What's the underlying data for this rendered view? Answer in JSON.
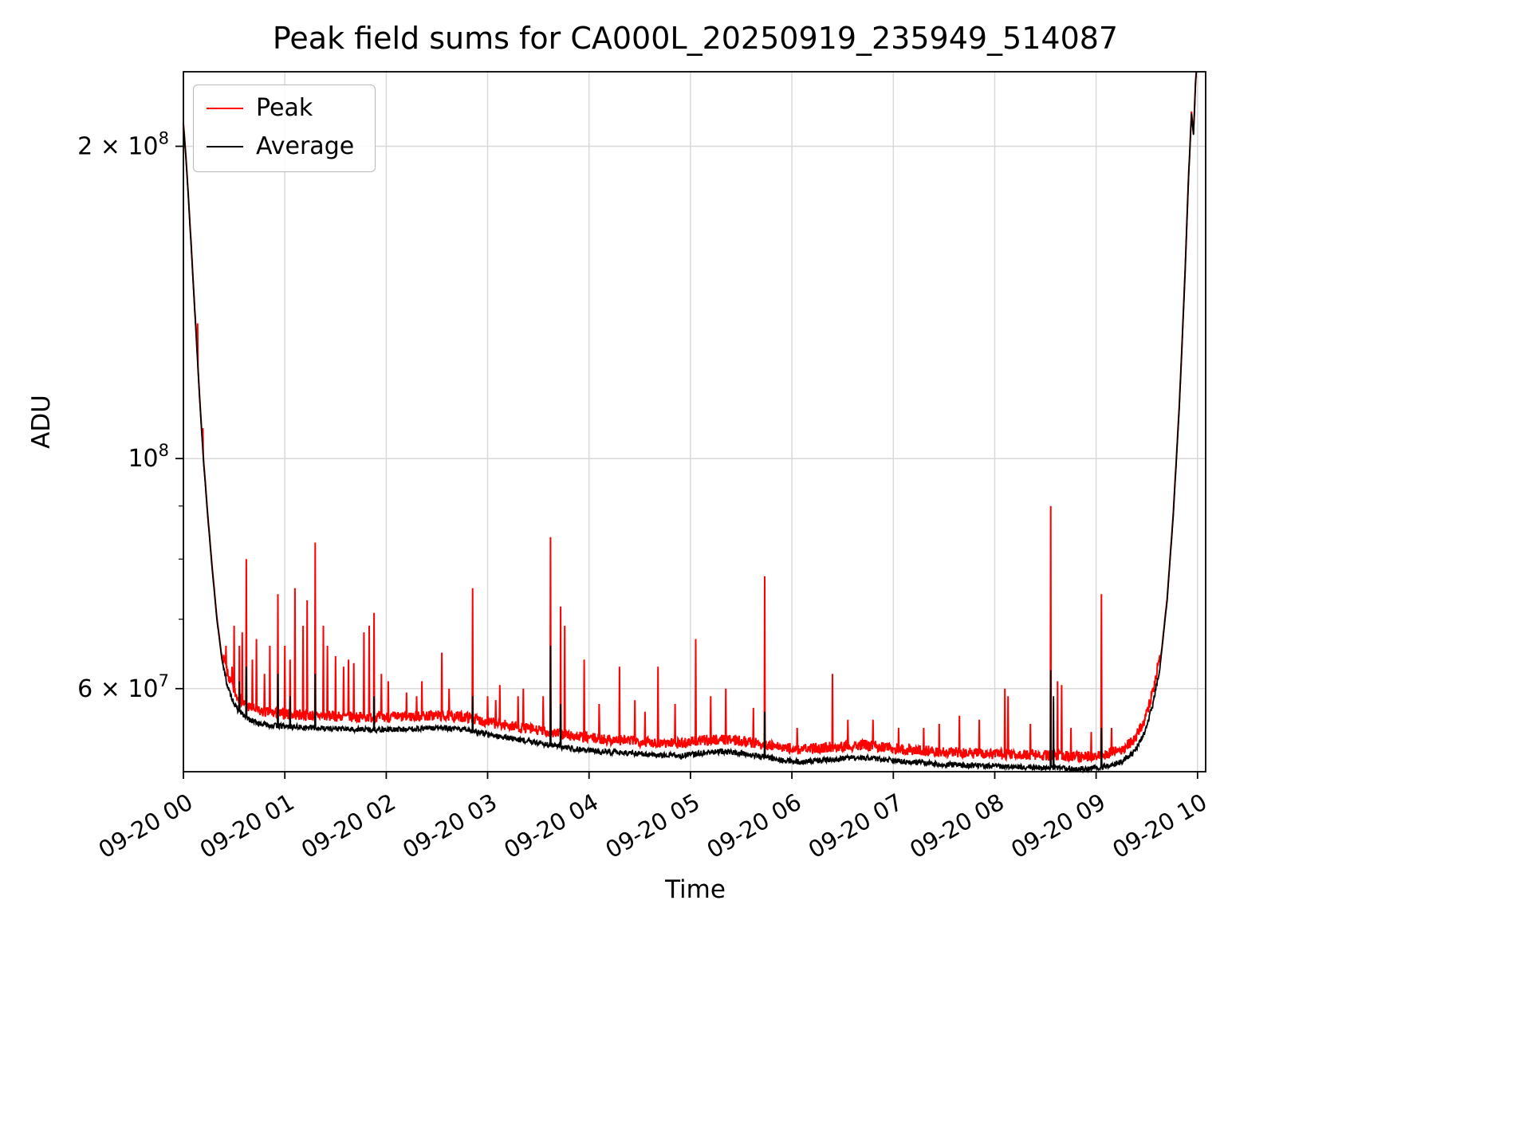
{
  "chart_data": {
    "type": "line",
    "title": "Peak field sums for CA000L_20250919_235949_514087",
    "xlabel": "Time",
    "ylabel": "ADU",
    "yscale": "log",
    "grid": true,
    "grid_color": "#d9d9d9",
    "background_color": "#ffffff",
    "xlim_hours": [
      0,
      10.08
    ],
    "ylim": [
      49900000,
      236000000
    ],
    "x_ticks": [
      {
        "hour": 0,
        "label": "09-20 00"
      },
      {
        "hour": 1,
        "label": "09-20 01"
      },
      {
        "hour": 2,
        "label": "09-20 02"
      },
      {
        "hour": 3,
        "label": "09-20 03"
      },
      {
        "hour": 4,
        "label": "09-20 04"
      },
      {
        "hour": 5,
        "label": "09-20 05"
      },
      {
        "hour": 6,
        "label": "09-20 06"
      },
      {
        "hour": 7,
        "label": "09-20 07"
      },
      {
        "hour": 8,
        "label": "09-20 08"
      },
      {
        "hour": 9,
        "label": "09-20 09"
      },
      {
        "hour": 10,
        "label": "09-20 10"
      }
    ],
    "y_ticks": [
      {
        "value": 60000000,
        "label": "6 × 10^7"
      },
      {
        "value": 100000000,
        "label": "10^8"
      },
      {
        "value": 200000000,
        "label": "2 × 10^8"
      }
    ],
    "y_minor_ticks": [
      70000000,
      80000000,
      90000000
    ],
    "legend": {
      "position": "upper left",
      "entries": [
        {
          "label": "Peak",
          "color": "#ff0000"
        },
        {
          "label": "Average",
          "color": "#000000"
        }
      ]
    },
    "series": {
      "average": {
        "name": "Average",
        "color": "#000000",
        "noise": 0.006,
        "seed": 13,
        "anchors": [
          [
            0.0,
            210000000.0
          ],
          [
            0.02,
            198000000.0
          ],
          [
            0.05,
            178000000.0
          ],
          [
            0.08,
            158000000.0
          ],
          [
            0.11,
            140000000.0
          ],
          [
            0.14,
            124000000.0
          ],
          [
            0.17,
            110000000.0
          ],
          [
            0.2,
            99000000.0
          ],
          [
            0.24,
            88000000.0
          ],
          [
            0.28,
            79000000.0
          ],
          [
            0.33,
            70000000.0
          ],
          [
            0.38,
            64000000.0
          ],
          [
            0.44,
            60000000.0
          ],
          [
            0.52,
            57500000.0
          ],
          [
            0.62,
            56200000.0
          ],
          [
            0.75,
            55500000.0
          ],
          [
            0.95,
            55200000.0
          ],
          [
            1.3,
            55000000.0
          ],
          [
            1.7,
            54800000.0
          ],
          [
            2.1,
            54800000.0
          ],
          [
            2.5,
            55000000.0
          ],
          [
            2.8,
            54800000.0
          ],
          [
            3.0,
            54200000.0
          ],
          [
            3.2,
            53800000.0
          ],
          [
            3.5,
            53200000.0
          ],
          [
            3.8,
            52600000.0
          ],
          [
            4.1,
            52200000.0
          ],
          [
            4.4,
            52000000.0
          ],
          [
            4.7,
            51800000.0
          ],
          [
            4.9,
            51700000.0
          ],
          [
            5.1,
            52000000.0
          ],
          [
            5.3,
            52200000.0
          ],
          [
            5.5,
            52000000.0
          ],
          [
            5.7,
            51600000.0
          ],
          [
            5.9,
            51200000.0
          ],
          [
            6.1,
            51000000.0
          ],
          [
            6.3,
            51200000.0
          ],
          [
            6.5,
            51400000.0
          ],
          [
            6.7,
            51500000.0
          ],
          [
            6.9,
            51300000.0
          ],
          [
            7.1,
            51000000.0
          ],
          [
            7.4,
            50800000.0
          ],
          [
            7.7,
            50600000.0
          ],
          [
            8.0,
            50500000.0
          ],
          [
            8.3,
            50400000.0
          ],
          [
            8.6,
            50300000.0
          ],
          [
            8.9,
            50200000.0
          ],
          [
            9.1,
            50500000.0
          ],
          [
            9.25,
            51000000.0
          ],
          [
            9.38,
            52200000.0
          ],
          [
            9.48,
            54500000.0
          ],
          [
            9.56,
            58000000.0
          ],
          [
            9.63,
            63000000.0
          ],
          [
            9.7,
            73000000.0
          ],
          [
            9.76,
            88000000.0
          ],
          [
            9.82,
            112000000.0
          ],
          [
            9.87,
            145000000.0
          ],
          [
            9.91,
            185000000.0
          ],
          [
            9.94,
            215000000.0
          ],
          [
            9.96,
            205000000.0
          ],
          [
            9.98,
            230000000.0
          ],
          [
            10.02,
            260000000.0
          ]
        ],
        "spikes": [
          [
            0.55,
            61000000.0
          ],
          [
            0.62,
            63000000.0
          ],
          [
            0.93,
            62000000.0
          ],
          [
            1.05,
            59000000.0
          ],
          [
            1.3,
            62000000.0
          ],
          [
            1.88,
            59000000.0
          ],
          [
            2.85,
            59000000.0
          ],
          [
            3.62,
            66000000.0
          ],
          [
            3.72,
            58000000.0
          ],
          [
            5.73,
            57000000.0
          ],
          [
            8.55,
            62500000.0
          ],
          [
            8.58,
            59000000.0
          ],
          [
            9.05,
            55000000.0
          ]
        ]
      },
      "peak": {
        "name": "Peak",
        "color": "#ff0000",
        "noise": 0.012,
        "seed": 7,
        "offset_ratio_flat": 1.028,
        "offset_ratio_steep": 1.004,
        "offset_threshold": 63000000,
        "spikes": [
          [
            0.14,
            135000000.0
          ],
          [
            0.19,
            107000000.0
          ],
          [
            0.24,
            88000000.0
          ],
          [
            0.42,
            66000000.0
          ],
          [
            0.48,
            63000000.0
          ],
          [
            0.5,
            69000000.0
          ],
          [
            0.55,
            66000000.0
          ],
          [
            0.58,
            68000000.0
          ],
          [
            0.62,
            80000000.0
          ],
          [
            0.68,
            64000000.0
          ],
          [
            0.72,
            67000000.0
          ],
          [
            0.8,
            62000000.0
          ],
          [
            0.85,
            66000000.0
          ],
          [
            0.93,
            74000000.0
          ],
          [
            1.0,
            66000000.0
          ],
          [
            1.05,
            64000000.0
          ],
          [
            1.1,
            75000000.0
          ],
          [
            1.18,
            69000000.0
          ],
          [
            1.22,
            73000000.0
          ],
          [
            1.3,
            83000000.0
          ],
          [
            1.38,
            69000000.0
          ],
          [
            1.42,
            66000000.0
          ],
          [
            1.5,
            64500000.0
          ],
          [
            1.58,
            63000000.0
          ],
          [
            1.63,
            64000000.0
          ],
          [
            1.68,
            63500000.0
          ],
          [
            1.78,
            68000000.0
          ],
          [
            1.83,
            69000000.0
          ],
          [
            1.88,
            71000000.0
          ],
          [
            1.95,
            62000000.0
          ],
          [
            2.02,
            61000000.0
          ],
          [
            2.2,
            59500000.0
          ],
          [
            2.3,
            59000000.0
          ],
          [
            2.35,
            61000000.0
          ],
          [
            2.55,
            65000000.0
          ],
          [
            2.62,
            60000000.0
          ],
          [
            2.85,
            75000000.0
          ],
          [
            3.0,
            59000000.0
          ],
          [
            3.08,
            58500000.0
          ],
          [
            3.12,
            60500000.0
          ],
          [
            3.3,
            59000000.0
          ],
          [
            3.35,
            60000000.0
          ],
          [
            3.55,
            59000000.0
          ],
          [
            3.62,
            84000000.0
          ],
          [
            3.72,
            72000000.0
          ],
          [
            3.76,
            69000000.0
          ],
          [
            3.95,
            64000000.0
          ],
          [
            4.1,
            58000000.0
          ],
          [
            4.3,
            63000000.0
          ],
          [
            4.45,
            58500000.0
          ],
          [
            4.55,
            57000000.0
          ],
          [
            4.68,
            63000000.0
          ],
          [
            4.85,
            58000000.0
          ],
          [
            5.05,
            67000000.0
          ],
          [
            5.2,
            59000000.0
          ],
          [
            5.35,
            60000000.0
          ],
          [
            5.62,
            57500000.0
          ],
          [
            5.73,
            77000000.0
          ],
          [
            6.05,
            55000000.0
          ],
          [
            6.4,
            62000000.0
          ],
          [
            6.55,
            56000000.0
          ],
          [
            6.8,
            56000000.0
          ],
          [
            7.05,
            55000000.0
          ],
          [
            7.3,
            55000000.0
          ],
          [
            7.45,
            55500000.0
          ],
          [
            7.65,
            56500000.0
          ],
          [
            7.85,
            56000000.0
          ],
          [
            8.1,
            60000000.0
          ],
          [
            8.13,
            59000000.0
          ],
          [
            8.35,
            55500000.0
          ],
          [
            8.55,
            90000000.0
          ],
          [
            8.62,
            61000000.0
          ],
          [
            8.66,
            60500000.0
          ],
          [
            8.75,
            55000000.0
          ],
          [
            8.95,
            54500000.0
          ],
          [
            9.05,
            74000000.0
          ],
          [
            9.15,
            55000000.0
          ]
        ]
      }
    }
  }
}
